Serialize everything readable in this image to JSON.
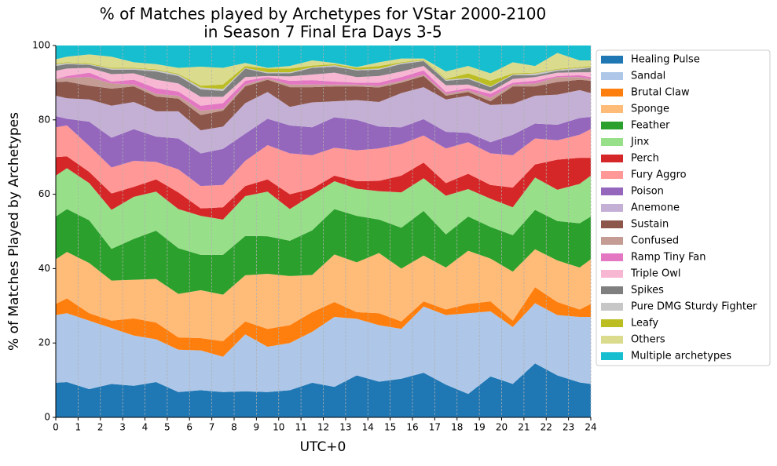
{
  "chart_data": {
    "type": "stacked_area",
    "title": [
      "% of Matches played by Archetypes for VStar 2000-2100",
      "in Season 7 Final Era Days 3-5"
    ],
    "xlabel": "UTC+0",
    "ylabel": "% of Matches Played by Archetypes",
    "x": [
      0,
      0.5,
      1.5,
      2.5,
      3.5,
      4.5,
      5.5,
      6.5,
      7.5,
      8.5,
      9.5,
      10.5,
      11.5,
      12.5,
      13.5,
      14.5,
      15.5,
      16.5,
      17.5,
      18.5,
      19.5,
      20.5,
      21.5,
      22.5,
      23.5,
      24
    ],
    "xlim": [
      0,
      24
    ],
    "xticks": [
      0,
      1,
      2,
      3,
      4,
      5,
      6,
      7,
      8,
      9,
      10,
      11,
      12,
      13,
      14,
      15,
      16,
      17,
      18,
      19,
      20,
      21,
      22,
      23,
      24
    ],
    "ylim": [
      0,
      100
    ],
    "yticks": [
      0,
      20,
      40,
      60,
      80,
      100
    ],
    "grid": "x",
    "legend": "outside right",
    "series": [
      {
        "name": "Healing Pulse",
        "color": "#1f77b4",
        "values": [
          9.3,
          9.5,
          7.6,
          9,
          8.5,
          9.5,
          6.8,
          7.3,
          6.8,
          7,
          6.8,
          7.3,
          9.3,
          8.2,
          11.3,
          9.6,
          10.4,
          12,
          8.8,
          6.3,
          11,
          9,
          14.5,
          11.3,
          9.4,
          9
        ]
      },
      {
        "name": "Sandal",
        "color": "#aec7e8",
        "values": [
          18.2,
          18.5,
          18.4,
          15,
          13.5,
          11.5,
          11.4,
          10.7,
          9.5,
          15.3,
          12.2,
          12.7,
          13.7,
          18.8,
          15.2,
          15.2,
          13.4,
          17.8,
          18.7,
          21.7,
          17.5,
          15.3,
          16.2,
          16.2,
          17.6,
          18
        ]
      },
      {
        "name": "Brutal Claw",
        "color": "#ff7f0e",
        "values": [
          3,
          4,
          2,
          2,
          4.6,
          4.5,
          3.3,
          3.3,
          4.2,
          3.5,
          4.8,
          4.8,
          5.3,
          4,
          1.8,
          3.2,
          2,
          1.4,
          1.5,
          2.5,
          2.7,
          1.7,
          4.3,
          3.5,
          2,
          3.5
        ]
      },
      {
        "name": "Sponge",
        "color": "#ffbb78",
        "values": [
          12,
          12.5,
          13.5,
          10.8,
          10.4,
          11.7,
          11.7,
          12.9,
          12.5,
          12.4,
          14.8,
          13.2,
          10,
          12.8,
          13.4,
          16.2,
          14.2,
          12.3,
          11.3,
          14.3,
          11.5,
          13.2,
          10.2,
          11.2,
          11.3,
          12
        ]
      },
      {
        "name": "Feather",
        "color": "#2ca02c",
        "values": [
          11.5,
          11.5,
          11.5,
          8.5,
          11,
          13,
          12.3,
          9.5,
          10.7,
          10.6,
          10.1,
          9.5,
          12,
          12.2,
          12.5,
          9,
          11,
          12,
          8.9,
          9.2,
          8.5,
          9.8,
          10.6,
          10.6,
          11.9,
          11.5
        ]
      },
      {
        "name": "Jinx",
        "color": "#98df8a",
        "values": [
          11,
          11,
          10,
          10.5,
          11.3,
          10.5,
          10.5,
          10.5,
          9.5,
          10.7,
          12,
          8.5,
          9.5,
          7.5,
          7.3,
          7.6,
          9.5,
          8.8,
          10.4,
          7.4,
          7.6,
          7.5,
          8.7,
          8.4,
          10.6,
          11
        ]
      },
      {
        "name": "Perch",
        "color": "#d62728",
        "values": [
          5,
          3.2,
          3,
          4.4,
          2.7,
          3.3,
          4.5,
          2,
          3.3,
          2.7,
          3.3,
          4,
          1.7,
          1.5,
          2,
          2.8,
          4.5,
          4.2,
          3.4,
          4.1,
          3.7,
          5.3,
          3.5,
          8.1,
          7,
          4.8
        ]
      },
      {
        "name": "Fury Aggro",
        "color": "#ff9896",
        "values": [
          8,
          8.3,
          7,
          7,
          7,
          4.7,
          6.2,
          6,
          6,
          6.8,
          9.2,
          11,
          9,
          7.5,
          8.3,
          8.7,
          8.5,
          7.3,
          9.3,
          8.5,
          8.5,
          8.7,
          7,
          5.2,
          6.2,
          7.7
        ]
      },
      {
        "name": "Poison",
        "color": "#9467bd",
        "values": [
          3,
          1.8,
          6.5,
          8,
          8.5,
          6.8,
          8.3,
          8.8,
          9.7,
          7.3,
          7.1,
          7.5,
          7.5,
          8.2,
          8.2,
          5.9,
          4.5,
          4.4,
          4.5,
          2.5,
          3,
          5.5,
          4,
          4.2,
          4.5,
          3.3
        ]
      },
      {
        "name": "Anemone",
        "color": "#c5b0d5",
        "values": [
          5.5,
          5.5,
          6,
          8.6,
          7.3,
          6.8,
          7.3,
          6.2,
          6,
          8.2,
          7.2,
          5,
          6.7,
          4.3,
          5.3,
          6.6,
          9.2,
          8.6,
          8.7,
          10,
          10,
          8.3,
          7.5,
          8.1,
          7.5,
          6.4
        ]
      },
      {
        "name": "Sustain",
        "color": "#8c564b",
        "values": [
          3.7,
          4.5,
          3.7,
          4.6,
          4.2,
          4,
          3.4,
          4.1,
          4.3,
          4.5,
          3.3,
          5.3,
          4.1,
          4,
          3.7,
          3.9,
          2.8,
          3,
          1,
          1,
          1,
          4.7,
          2.5,
          3.4,
          2.8,
          3.3
        ]
      },
      {
        "name": "Confused",
        "color": "#c49c94",
        "values": [
          0.8,
          1,
          2.3,
          1.4,
          0.5,
          0.7,
          0.8,
          1.2,
          0.5,
          0.5,
          0.4,
          0.7,
          0.7,
          0.5,
          0.5,
          0.5,
          0.5,
          0.4,
          0.5,
          0.5,
          1,
          0.5,
          0.8,
          1.3,
          0.7,
          0.5
        ]
      },
      {
        "name": "Ramp Tiny Fan",
        "color": "#e377c2",
        "values": [
          0,
          0.5,
          1.2,
          0.5,
          1.3,
          1.5,
          1.1,
          1.3,
          1.5,
          1,
          0.3,
          1,
          1.2,
          0.8,
          0.5,
          0.8,
          1,
          1.1,
          0.5,
          0.5,
          1,
          0.5,
          0.7,
          0.3,
          0.5,
          0.5
        ]
      },
      {
        "name": "Triple Owl",
        "color": "#f7b6d2",
        "values": [
          2.2,
          2,
          1.3,
          2,
          1.7,
          2.3,
          2.2,
          2.4,
          1.7,
          1,
          0.3,
          1.2,
          1.5,
          2.4,
          1.5,
          1.8,
          1.5,
          1.2,
          1.8,
          1,
          0.6,
          1,
          1,
          0.9,
          0.8,
          1.3
        ]
      },
      {
        "name": "Spikes",
        "color": "#7f7f7f",
        "values": [
          1.3,
          1.2,
          0.8,
          1.2,
          1,
          2.2,
          2,
          2,
          1.6,
          2.3,
          0.7,
          0.8,
          1.8,
          1.6,
          1.8,
          1.7,
          2,
          1.3,
          1.2,
          1.5,
          1.2,
          1,
          0.5,
          0.5,
          0.8,
          1.2
        ]
      },
      {
        "name": "Pure DMG Sturdy Fighter",
        "color": "#c7c7c7",
        "values": [
          0.5,
          0.3,
          0.2,
          0.3,
          0.3,
          0.4,
          0.4,
          0.5,
          0.5,
          0.2,
          0.3,
          0.3,
          0.2,
          0.4,
          0.2,
          0.3,
          0.3,
          0.2,
          0.3,
          0.3,
          0.2,
          0.2,
          0.5,
          0.3,
          0.4,
          0.2
        ]
      },
      {
        "name": "Leafy",
        "color": "#bcbd22",
        "values": [
          0.2,
          0.2,
          0.2,
          0.2,
          0.2,
          0.2,
          0.2,
          0.5,
          1.2,
          0.5,
          1,
          1,
          0.4,
          0.3,
          0.5,
          0.7,
          0.2,
          0.2,
          0.2,
          1.2,
          1.5,
          0.3,
          0.2,
          0.2,
          0.2,
          0.3
        ]
      },
      {
        "name": "Others",
        "color": "#dbdb8d",
        "values": [
          1.1,
          1.5,
          2.4,
          3,
          1.5,
          1.4,
          1.6,
          5.1,
          4.5,
          0.8,
          0.2,
          0.7,
          1.4,
          0.3,
          0.2,
          1,
          1,
          0.3,
          2,
          2,
          2,
          3,
          1.8,
          4.3,
          1.8,
          1.5
        ]
      },
      {
        "name": "Multiple archetypes",
        "color": "#17becf",
        "values": [
          3.7,
          3,
          2.4,
          3,
          4.5,
          5,
          6,
          5.7,
          6,
          4.7,
          6,
          5.5,
          4,
          4.7,
          5.8,
          4.5,
          3.5,
          3.5,
          7,
          5.5,
          7.5,
          4.5,
          5.5,
          2,
          4,
          4
        ]
      }
    ]
  }
}
